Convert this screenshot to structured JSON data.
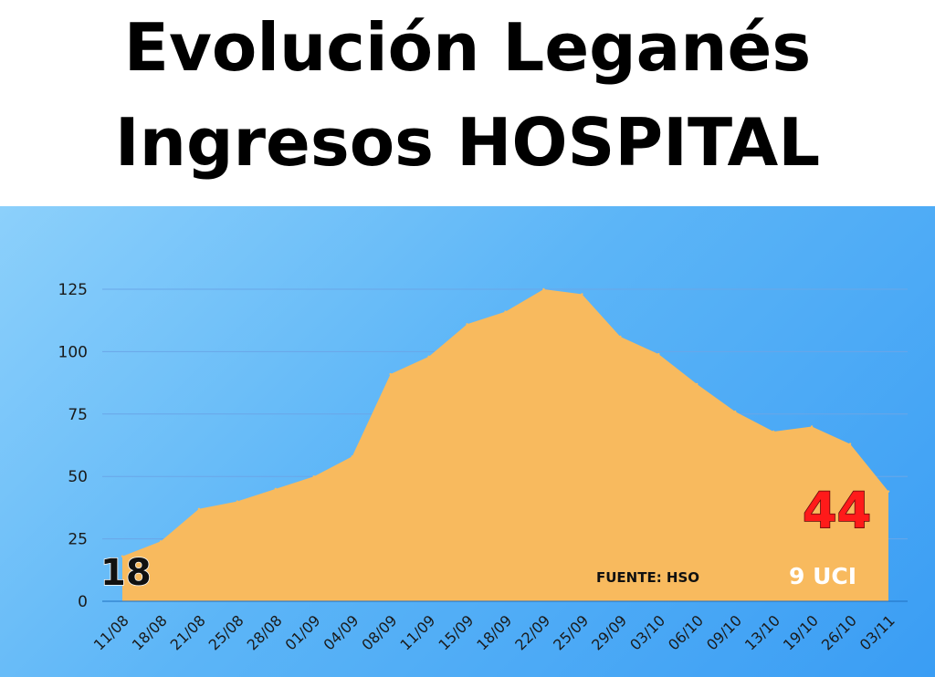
{
  "title": {
    "line1": "Evolución Leganés",
    "line2": "Ingresos HOSPITAL"
  },
  "colors": {
    "area": "#f8ba5e",
    "background_top": "#8cd0fb",
    "background_bottom": "#3a9df4",
    "gridline": "#6aa6e8",
    "end_value": "#ff1a1a"
  },
  "chart_data": {
    "type": "area",
    "x": [
      "11/08",
      "18/08",
      "21/08",
      "25/08",
      "28/08",
      "01/09",
      "04/09",
      "08/09",
      "11/09",
      "15/09",
      "18/09",
      "22/09",
      "25/09",
      "29/09",
      "03/10",
      "06/10",
      "09/10",
      "13/10",
      "19/10",
      "26/10",
      "03/11"
    ],
    "series": [
      {
        "values": [
          18,
          24,
          37,
          40,
          45,
          50,
          58,
          91,
          98,
          111,
          116,
          125,
          123,
          106,
          99,
          87,
          76,
          68,
          70,
          63,
          44
        ]
      }
    ],
    "yticks": [
      0,
      25,
      50,
      75,
      100,
      125
    ],
    "ylim": [
      0,
      125
    ],
    "grid": true,
    "xlabel": "",
    "ylabel": "",
    "annotations": {
      "start_value": "18",
      "end_value": "44",
      "source": "FUENTE: HSO",
      "uci": "9  UCI"
    }
  }
}
